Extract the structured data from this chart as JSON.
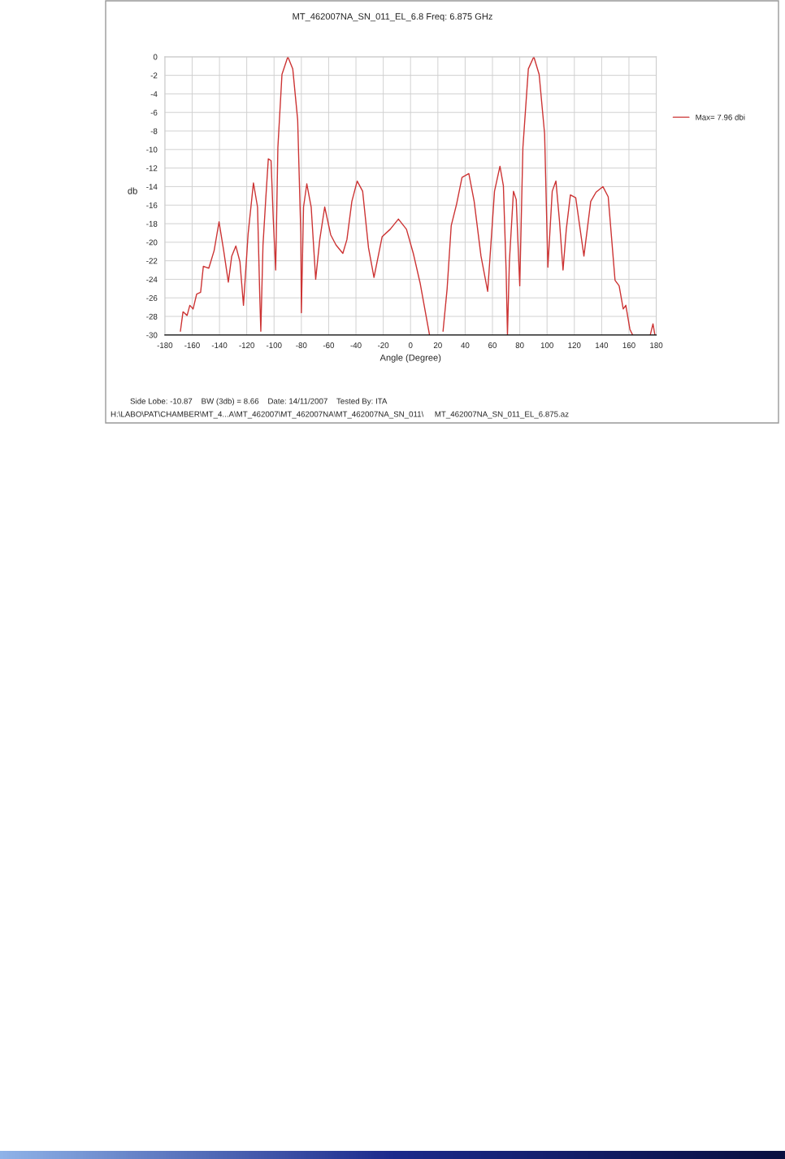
{
  "chart_data": {
    "type": "line",
    "title": "MT_462007NA_SN_011_EL_6.8 Freq: 6.875 GHz",
    "xlabel": "Angle (Degree)",
    "ylabel": "db",
    "series": [
      {
        "name": "Max= 7.96 dbi",
        "color": "#cc3333",
        "x": [
          -168.6,
          -166.7,
          -163.7,
          -161.7,
          -159.3,
          -156.7,
          -153.8,
          -151.8,
          -147.8,
          -143.9,
          -140.3,
          -136.9,
          -133.5,
          -131,
          -128,
          -125,
          -122.4,
          -119,
          -115.1,
          -112.1,
          -110.5,
          -109.7,
          -108.1,
          -106.1,
          -104.2,
          -102.2,
          -100.6,
          -98.8,
          -97.2,
          -94.2,
          -89.9,
          -86.3,
          -82.7,
          -80.4,
          -80,
          -78.4,
          -76,
          -72.8,
          -69.5,
          -66.5,
          -62.9,
          -58.5,
          -54.6,
          -49.6,
          -46.6,
          -43,
          -39.1,
          -35.1,
          -30.8,
          -26.8,
          -20.8,
          -14.9,
          -8.9,
          -3,
          2,
          7,
          13.9,
          18,
          23.8,
          26.8,
          29.8,
          33.7,
          37.7,
          42.7,
          46.6,
          51.6,
          56.5,
          61.5,
          65.5,
          68,
          70,
          71,
          72.4,
          75.4,
          77.4,
          80,
          82.3,
          86.3,
          90.3,
          94.2,
          98.2,
          100.6,
          103.8,
          106.5,
          109.1,
          111.7,
          114.1,
          117.1,
          121,
          127,
          132,
          135.9,
          140.9,
          144.8,
          149.8,
          152.8,
          155.8,
          157.7,
          160.7,
          162.7,
          169,
          175.6,
          177.6,
          179
        ],
        "values": [
          -29.6,
          -27.5,
          -27.9,
          -26.8,
          -27.2,
          -25.6,
          -25.4,
          -22.6,
          -22.8,
          -20.9,
          -17.8,
          -20.9,
          -24.3,
          -21.5,
          -20.4,
          -22.1,
          -26.8,
          -19.1,
          -13.6,
          -16.2,
          -25.6,
          -29.6,
          -20.3,
          -15.4,
          -11.0,
          -11.2,
          -17.4,
          -23.0,
          -9.8,
          -1.9,
          0,
          -1.3,
          -6.8,
          -19.1,
          -27.6,
          -16.2,
          -13.7,
          -16.2,
          -24.0,
          -19.7,
          -16.2,
          -19.2,
          -20.3,
          -21.2,
          -19.7,
          -15.6,
          -13.4,
          -14.5,
          -20.6,
          -23.8,
          -19.4,
          -18.6,
          -17.5,
          -18.6,
          -21.2,
          -24.4,
          -30,
          null,
          -29.6,
          -25,
          -18.2,
          -15.9,
          -13.0,
          -12.6,
          -15.6,
          -21.5,
          -25.3,
          -14.5,
          -11.8,
          -13.9,
          -23,
          -30,
          -22.1,
          -14.5,
          -15.4,
          -24.7,
          -9.8,
          -1.3,
          0,
          -1.9,
          -8.3,
          -22.7,
          -14.5,
          -13.4,
          -17.7,
          -23,
          -18.6,
          -14.9,
          -15.2,
          -21.5,
          -15.6,
          -14.6,
          -14.0,
          -15.1,
          -24.1,
          -24.7,
          -27.2,
          -26.8,
          -29.4,
          -30,
          null,
          -30,
          -28.8,
          -30
        ]
      }
    ],
    "xlim": [
      -180,
      180
    ],
    "ylim": [
      -30,
      0
    ],
    "xticks": [
      -180,
      -160,
      -140,
      -120,
      -100,
      -80,
      -60,
      -40,
      -20,
      0,
      20,
      40,
      60,
      80,
      100,
      120,
      140,
      160,
      180
    ],
    "yticks": [
      0,
      -2,
      -4,
      -6,
      -8,
      -10,
      -12,
      -14,
      -16,
      -18,
      -20,
      -22,
      -24,
      -26,
      -28,
      -30
    ],
    "grid": true,
    "legend": "right",
    "marker": "none",
    "line_style": "solid",
    "annotations": [
      "Side Lobe: -10.87    BW (3db) = 8.66    Date: 14/11/2007    Tested By: ITA",
      "H:\\LABO\\PAT\\CHAMBER\\MT_4...A\\MT_462007\\MT_462007NA\\MT_462007NA_SN_011\\     MT_462007NA_SN_011_EL_6.875.az"
    ]
  }
}
